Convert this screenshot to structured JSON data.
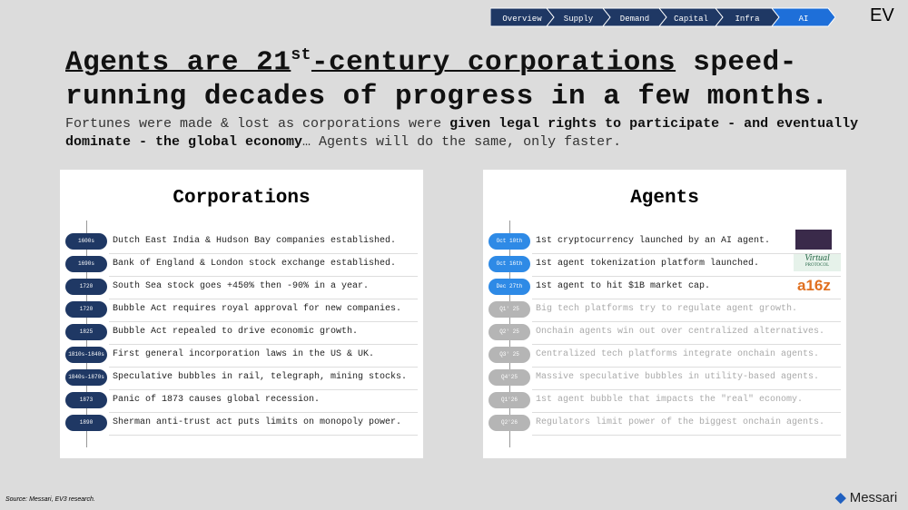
{
  "nav": [
    "Overview",
    "Supply",
    "Demand",
    "Capital",
    "Infra",
    "AI"
  ],
  "logo": "EV",
  "title": {
    "part1": "Agents are 21",
    "sup": "st",
    "part2": "-century corporations",
    "part3": " speed-running decades of progress in a few months."
  },
  "subtitle": [
    {
      "text": "Fortunes were made & lost as corporations were ",
      "bold": false
    },
    {
      "text": "given legal rights to participate - and eventually dominate - the global economy",
      "bold": true
    },
    {
      "text": "… Agents will do the same, only faster.",
      "bold": false
    }
  ],
  "left_panel": {
    "title": "Corporations",
    "rows": [
      {
        "date": "1600s",
        "text": "Dutch East India & Hudson Bay companies established."
      },
      {
        "date": "1690s",
        "text": "Bank of England & London stock exchange established."
      },
      {
        "date": "1720",
        "text": "South Sea stock goes +450% then -90% in a year."
      },
      {
        "date": "1720",
        "text": "Bubble Act requires royal approval for new companies."
      },
      {
        "date": "1825",
        "text": "Bubble Act repealed to drive economic growth."
      },
      {
        "date": "1810s-1840s",
        "text": "First general incorporation laws in the US & UK."
      },
      {
        "date": "1840s-1870s",
        "text": "Speculative bubbles in rail, telegraph, mining stocks."
      },
      {
        "date": "1873",
        "text": "Panic of 1873 causes global recession."
      },
      {
        "date": "1890",
        "text": "Sherman anti-trust act puts limits on monopoly power."
      }
    ]
  },
  "right_panel": {
    "title": "Agents",
    "rows": [
      {
        "date": "Oct 10th",
        "text": "1st cryptocurrency launched by an AI agent."
      },
      {
        "date": "Oct 16th",
        "text": "1st agent tokenization platform launched."
      },
      {
        "date": "Dec 27th",
        "text": "1st agent to hit $1B market cap."
      },
      {
        "date": "Q1' 25",
        "text": "Big tech platforms try to regulate agent growth."
      },
      {
        "date": "Q2' 25",
        "text": "Onchain agents win out over centralized alternatives."
      },
      {
        "date": "Q3' 25",
        "text": "Centralized tech platforms integrate onchain agents."
      },
      {
        "date": "Q4'25",
        "text": "Massive speculative bubbles in utility-based agents."
      },
      {
        "date": "Q1'26",
        "text": "1st agent bubble that impacts the \"real\" economy."
      },
      {
        "date": "Q2'26",
        "text": "Regulators limit power of the biggest onchain agents."
      }
    ],
    "logos": [
      "Virtual",
      "PROTOCOL",
      "a16z"
    ]
  },
  "footer": {
    "source": "Source: Messari, EV3 research.",
    "brand": "Messari"
  }
}
